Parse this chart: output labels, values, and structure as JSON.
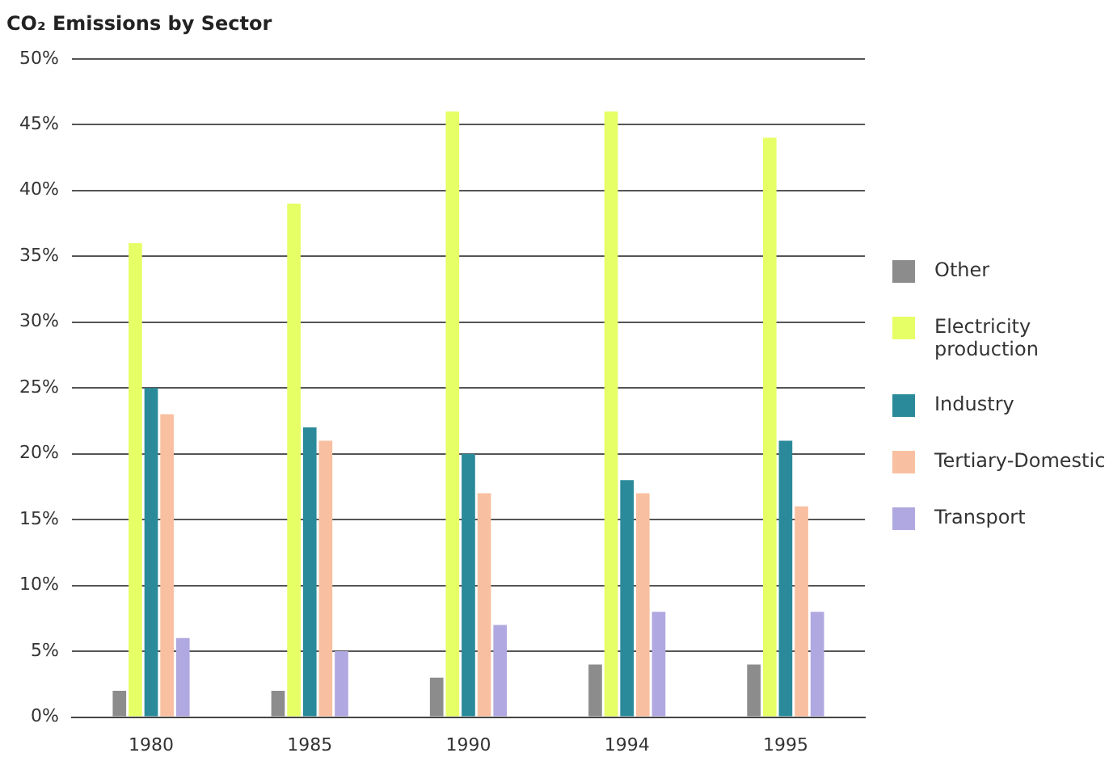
{
  "chart_data": {
    "type": "bar",
    "title": "CO₂ Emissions by Sector",
    "categories": [
      "1980",
      "1985",
      "1990",
      "1994",
      "1995"
    ],
    "series": [
      {
        "name": "Other",
        "color": "#8c8c8c",
        "values": [
          2,
          2,
          3,
          4,
          4
        ]
      },
      {
        "name": "Electricity production",
        "color": "#e6ff66",
        "values": [
          36,
          39,
          46,
          46,
          44
        ]
      },
      {
        "name": "Industry",
        "color": "#2a8a9a",
        "values": [
          25,
          22,
          20,
          18,
          21
        ]
      },
      {
        "name": "Tertiary-Domestic",
        "color": "#f8c0a0",
        "values": [
          23,
          21,
          17,
          17,
          16
        ]
      },
      {
        "name": "Transport",
        "color": "#b0a8e0",
        "values": [
          6,
          5,
          7,
          8,
          8
        ]
      }
    ],
    "ylim": [
      0,
      50
    ],
    "yticks": [
      {
        "value": 0,
        "label": "0%"
      },
      {
        "value": 5,
        "label": "5%"
      },
      {
        "value": 10,
        "label": "10%"
      },
      {
        "value": 15,
        "label": "15%"
      },
      {
        "value": 20,
        "label": "20%"
      },
      {
        "value": 25,
        "label": "25%"
      },
      {
        "value": 30,
        "label": "30%"
      },
      {
        "value": 35,
        "label": "35%"
      },
      {
        "value": 40,
        "label": "40%"
      },
      {
        "value": 45,
        "label": "45%"
      },
      {
        "value": 50,
        "label": "50%"
      }
    ],
    "grid": "y",
    "legend": "right"
  }
}
